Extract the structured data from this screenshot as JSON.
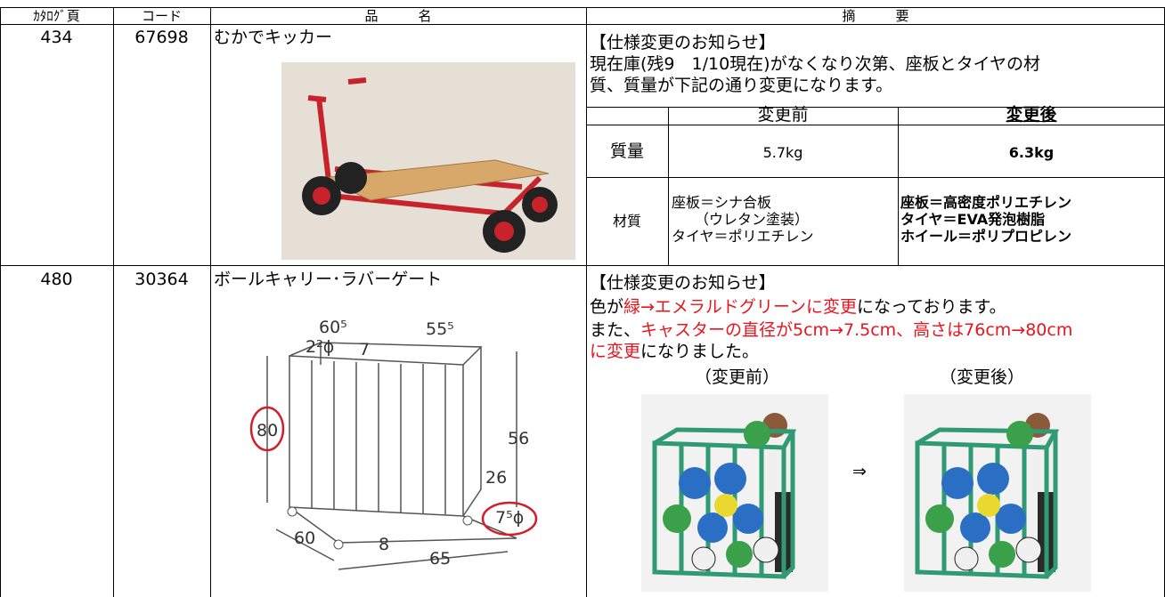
{
  "header": [
    "ｶﾀﾛｸﾞ頁",
    "コード",
    "品　　　名",
    "摘　　　要"
  ],
  "rows": [
    {
      "page": "434",
      "code": "67698",
      "name": "むかでキッカー",
      "notice": "【仕様変更のお知らせ】",
      "text": [
        "現在庫(残9　1/10現在)がなくなり次第、座板とタイヤの材",
        "質、質量が下記の通り変更になります。"
      ],
      "compare": {
        "before_header": "変更前",
        "after_header": "変更後",
        "mass": {
          "label": "質量",
          "before": "5.7kg",
          "after": "6.3kg"
        },
        "material": {
          "label": "材質",
          "before": [
            "座板＝シナ合板",
            "（ウレタン塗装）",
            "タイヤ＝ポリエチレン"
          ],
          "after": [
            "座板＝高密度ポリエチレン",
            "タイヤ＝EVA発泡樹脂",
            "ホイール＝ポリプロピレン"
          ]
        }
      }
    },
    {
      "page": "480",
      "code": "30364",
      "name": "ボールキャリー･ラバーゲート",
      "notice": "【仕様変更のお知らせ】",
      "line1": [
        "色が",
        "緑→エメラルドグリーンに変更",
        "になっております。"
      ],
      "line2": [
        "また、",
        "キャスターの直径が5cm→7.5cm、高さは76cm→80cm"
      ],
      "line3": [
        "に変更",
        "になりました。"
      ],
      "before_label": "（変更前）",
      "after_label": "（変更後）",
      "arrow": "⇒",
      "dims": [
        "60⁵",
        "55⁵",
        "2²ϕ",
        "7",
        "80",
        "56",
        "26",
        "7⁵ϕ",
        "60",
        "8",
        "65"
      ]
    }
  ]
}
